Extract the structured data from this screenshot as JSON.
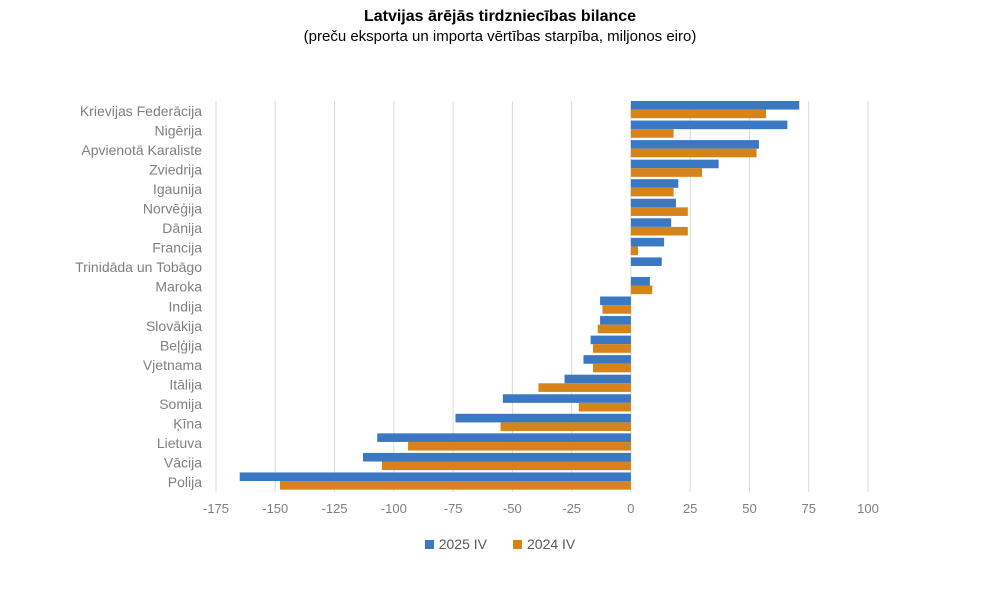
{
  "chart_data": {
    "type": "bar",
    "orientation": "horizontal",
    "title": "Latvijas ārējās tirdzniecības bilance",
    "subtitle": "(preču eksporta un importa vērtības starpība, miljonos eiro)",
    "categories": [
      "Krievijas Federācija",
      "Nigērija",
      "Apvienotā Karaliste",
      "Zviedrija",
      "Igaunija",
      "Norvēģija",
      "Dānija",
      "Francija",
      "Trinidāda un Tobāgo",
      "Maroka",
      "Indija",
      "Slovākija",
      "Beļģija",
      "Vjetnama",
      "Itālija",
      "Somija",
      "Ķīna",
      "Lietuva",
      "Vācija",
      "Polija"
    ],
    "series": [
      {
        "name": "2025 IV",
        "color": "#3a78c3",
        "values": [
          71,
          66,
          54,
          37,
          20,
          19,
          17,
          14,
          13,
          8,
          -13,
          -13,
          -17,
          -20,
          -28,
          -54,
          -74,
          -107,
          -113,
          -165
        ]
      },
      {
        "name": "2024 IV",
        "color": "#d6831c",
        "values": [
          57,
          18,
          53,
          30,
          18,
          24,
          24,
          3,
          0,
          9,
          -12,
          -14,
          -16,
          -16,
          -39,
          -22,
          -55,
          -94,
          -105,
          -148
        ]
      }
    ],
    "xlim": [
      -175,
      100
    ],
    "xticks": [
      "-175",
      "-150",
      "-125",
      "-100",
      "-75",
      "-50",
      "-25",
      "0",
      "25",
      "50",
      "75",
      "100"
    ],
    "grid": true,
    "legend_position": "bottom"
  }
}
